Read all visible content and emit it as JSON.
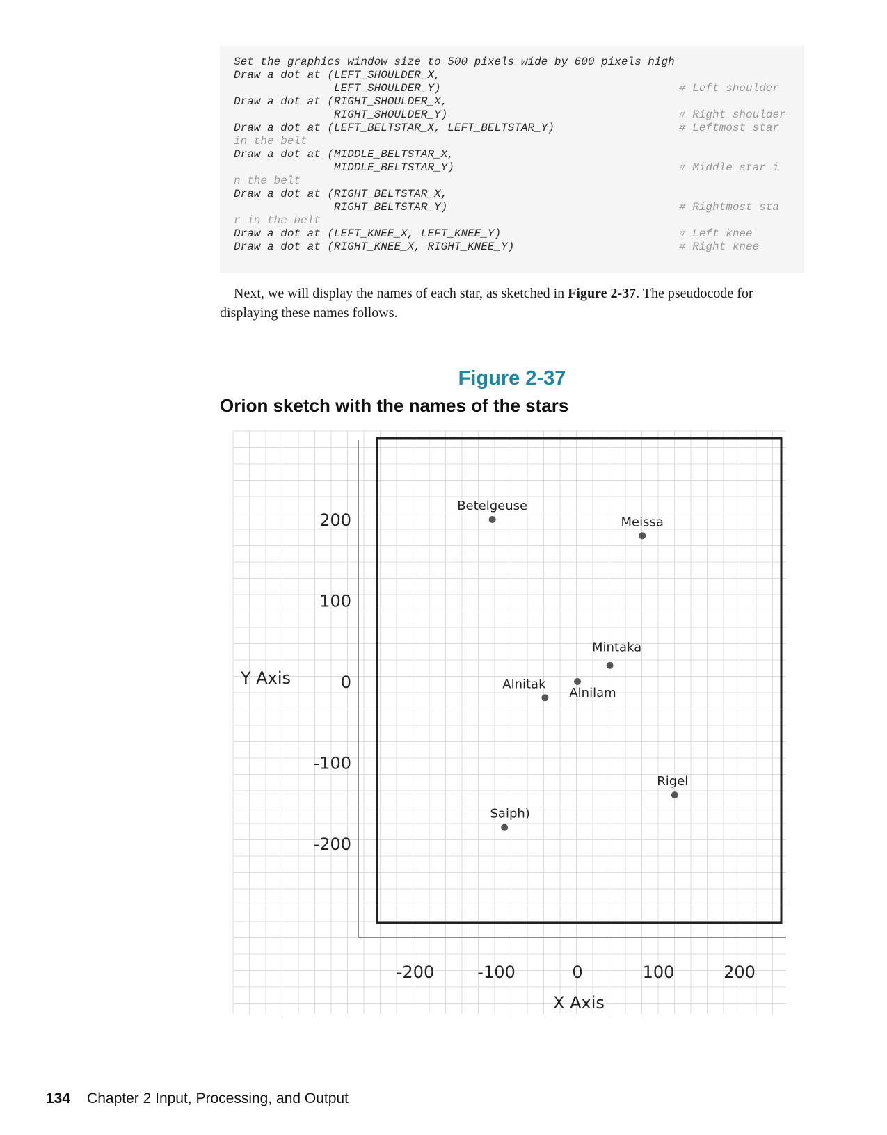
{
  "code_lines": [
    {
      "code": "Set the graphics window size to 500 pixels wide by 600 pixels high",
      "comment": "",
      "wrap": false
    },
    {
      "code": "Draw a dot at (LEFT_SHOULDER_X,",
      "comment": "",
      "wrap": false
    },
    {
      "code": "               LEFT_SHOULDER_Y)",
      "comment": "# Left shoulder",
      "wrap": false
    },
    {
      "code": "Draw a dot at (RIGHT_SHOULDER_X,",
      "comment": "",
      "wrap": false
    },
    {
      "code": "               RIGHT_SHOULDER_Y)",
      "comment": "# Right shoulder",
      "wrap": false
    },
    {
      "code": "Draw a dot at (LEFT_BELTSTAR_X, LEFT_BELTSTAR_Y)",
      "comment": "# Leftmost star",
      "wrap": false
    },
    {
      "code": "in the belt",
      "comment": "",
      "wrap": true
    },
    {
      "code": "Draw a dot at (MIDDLE_BELTSTAR_X,",
      "comment": "",
      "wrap": false
    },
    {
      "code": "               MIDDLE_BELTSTAR_Y)",
      "comment": "# Middle star i",
      "wrap": false
    },
    {
      "code": "n the belt",
      "comment": "",
      "wrap": true
    },
    {
      "code": "Draw a dot at (RIGHT_BELTSTAR_X,",
      "comment": "",
      "wrap": false
    },
    {
      "code": "               RIGHT_BELTSTAR_Y)",
      "comment": "# Rightmost sta",
      "wrap": false
    },
    {
      "code": "r in the belt",
      "comment": "",
      "wrap": true
    },
    {
      "code": "Draw a dot at (LEFT_KNEE_X, LEFT_KNEE_Y)",
      "comment": "# Left knee",
      "wrap": false
    },
    {
      "code": "Draw a dot at (RIGHT_KNEE_X, RIGHT_KNEE_Y)",
      "comment": "# Right knee",
      "wrap": false
    }
  ],
  "paragraph": {
    "before": "Next, we will display the names of each star, as sketched in ",
    "figure_ref": "Figure 2-37",
    "after": ". The pseudocode for displaying these names follows."
  },
  "figure": {
    "label": "Figure 2-37",
    "caption": "Orion sketch with the names of the stars"
  },
  "chart_data": {
    "type": "scatter",
    "xlabel": "X Axis",
    "ylabel": "Y Axis",
    "x_ticks": [
      "-200",
      "-100",
      "0",
      "100",
      "200"
    ],
    "y_ticks": [
      "200",
      "100",
      "0",
      "-100",
      "-200"
    ],
    "xlim": [
      -250,
      250
    ],
    "ylim": [
      -300,
      300
    ],
    "grid": true,
    "points": [
      {
        "name": "Betelgeuse",
        "x": -105,
        "y": 200
      },
      {
        "name": "Meissa",
        "x": 80,
        "y": 180
      },
      {
        "name": "Mintaka",
        "x": 40,
        "y": 20
      },
      {
        "name": "Alnilam",
        "x": 0,
        "y": 0
      },
      {
        "name": "Alnitak",
        "x": -40,
        "y": -20
      },
      {
        "name": "Rigel",
        "x": 120,
        "y": -140
      },
      {
        "name": "Saiph)",
        "x": -90,
        "y": -180
      }
    ]
  },
  "footer": {
    "page_number": "134",
    "chapter": "Chapter 2 Input, Processing, and Output"
  }
}
